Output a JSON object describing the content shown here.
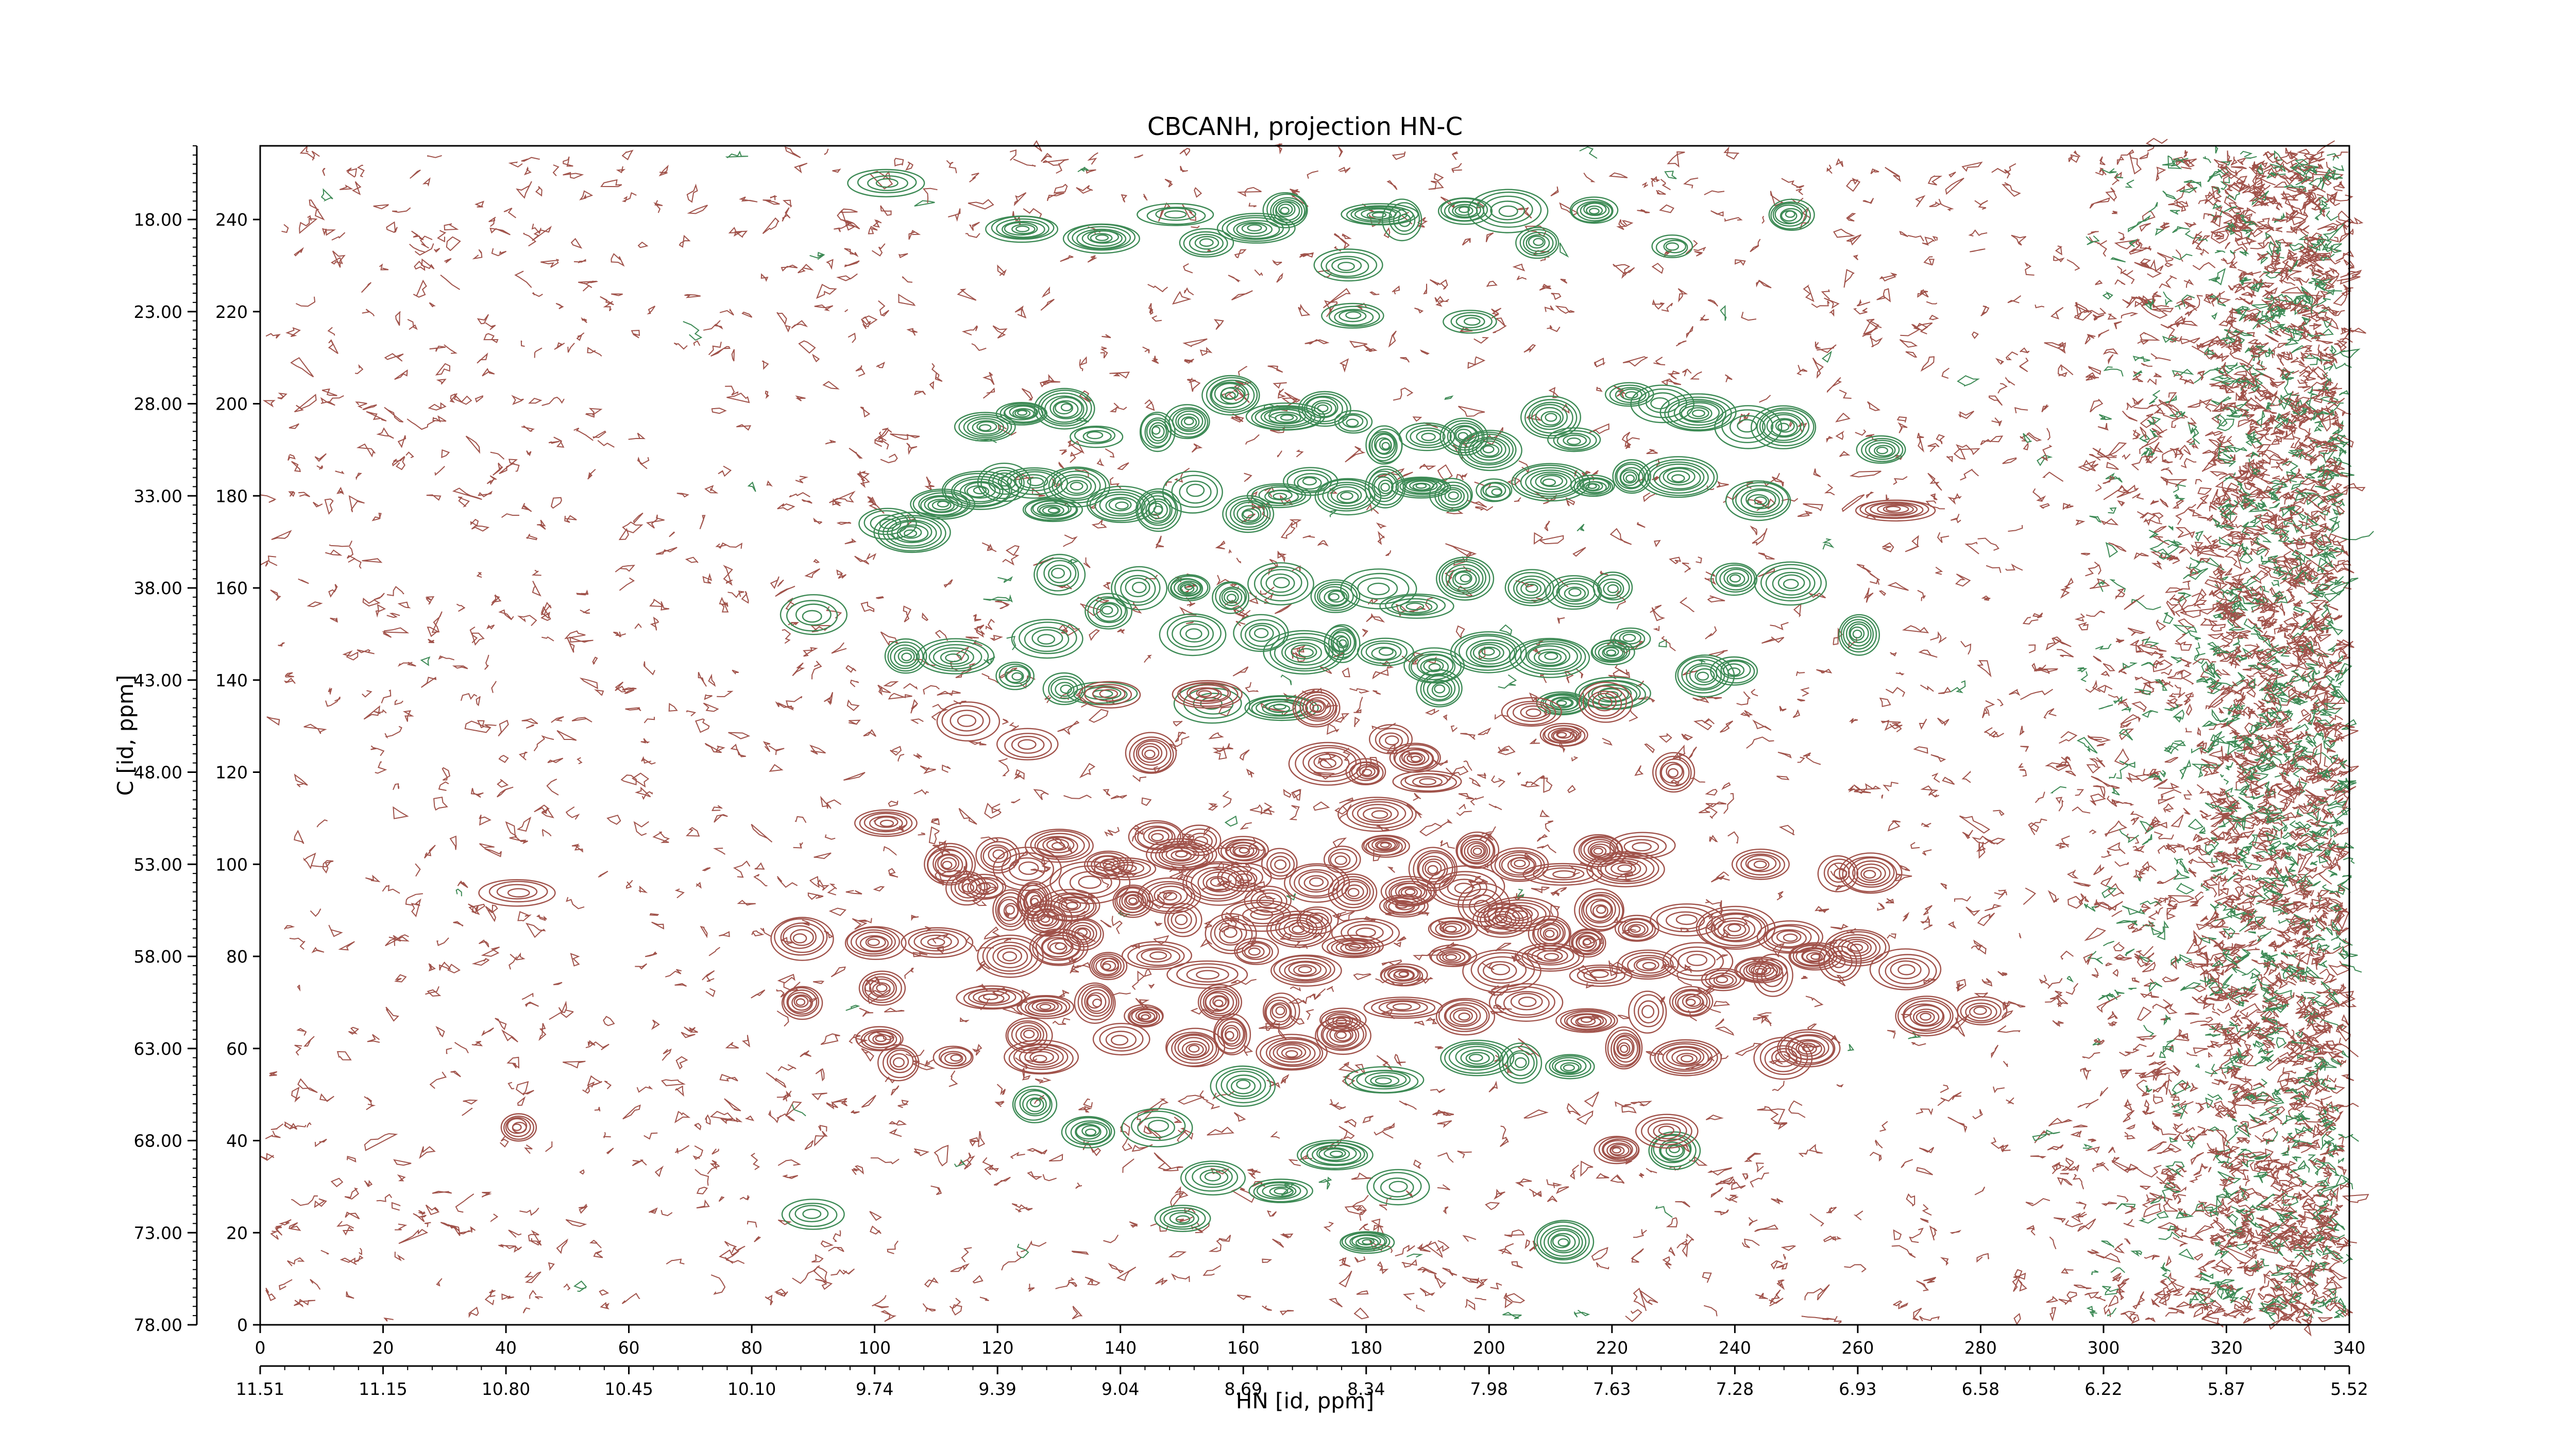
{
  "chart_data": {
    "type": "contour",
    "title": "CBCANH, projection HN-C",
    "xlabel": "HN [id, ppm]",
    "ylabel": "C [id, ppm]",
    "x_index_ticks": [
      "0",
      "20",
      "40",
      "60",
      "80",
      "100",
      "120",
      "140",
      "160",
      "180",
      "200",
      "220",
      "240",
      "260",
      "280",
      "300",
      "320",
      "340"
    ],
    "x_ppm_ticks": [
      "11.51",
      "11.15",
      "10.80",
      "10.45",
      "10.10",
      "9.74",
      "9.39",
      "9.04",
      "8.69",
      "8.34",
      "7.98",
      "7.63",
      "7.28",
      "6.93",
      "6.58",
      "6.22",
      "5.87",
      "5.52"
    ],
    "y_index_ticks": [
      "0",
      "20",
      "40",
      "60",
      "80",
      "100",
      "120",
      "140",
      "160",
      "180",
      "200",
      "220",
      "240"
    ],
    "y_ppm_ticks": [
      "78.00",
      "73.00",
      "68.00",
      "63.00",
      "58.00",
      "53.00",
      "48.00",
      "43.00",
      "38.00",
      "33.00",
      "28.00",
      "23.00",
      "18.00"
    ],
    "x_index_range": [
      0,
      340
    ],
    "y_index_range": [
      0,
      256
    ],
    "grid": false,
    "colors": {
      "positive": "#a0524a",
      "negative": "#3d8a55"
    },
    "series": [
      {
        "sign": "negative",
        "peaks": [
          [
            102,
            248
          ],
          [
            124,
            238
          ],
          [
            137,
            236
          ],
          [
            149,
            241
          ],
          [
            154,
            235
          ],
          [
            162,
            238
          ],
          [
            167,
            242
          ],
          [
            177,
            230
          ],
          [
            182,
            241
          ],
          [
            186,
            240
          ],
          [
            196,
            242
          ],
          [
            203,
            242
          ],
          [
            208,
            235
          ],
          [
            217,
            242
          ],
          [
            230,
            234
          ],
          [
            249,
            241
          ],
          [
            178,
            219
          ],
          [
            197,
            218
          ],
          [
            118,
            195
          ],
          [
            124,
            198
          ],
          [
            131,
            199
          ],
          [
            136,
            193
          ],
          [
            146,
            194
          ],
          [
            151,
            196
          ],
          [
            158,
            202
          ],
          [
            167,
            197
          ],
          [
            173,
            199
          ],
          [
            178,
            196
          ],
          [
            183,
            191
          ],
          [
            190,
            193
          ],
          [
            196,
            193
          ],
          [
            200,
            190
          ],
          [
            210,
            197
          ],
          [
            214,
            192
          ],
          [
            223,
            202
          ],
          [
            228,
            200
          ],
          [
            234,
            198
          ],
          [
            242,
            195
          ],
          [
            248,
            195
          ],
          [
            264,
            190
          ],
          [
            111,
            178
          ],
          [
            117,
            181
          ],
          [
            121,
            183
          ],
          [
            126,
            183
          ],
          [
            129,
            177
          ],
          [
            133,
            182
          ],
          [
            140,
            178
          ],
          [
            146,
            177
          ],
          [
            152,
            181
          ],
          [
            161,
            176
          ],
          [
            166,
            180
          ],
          [
            171,
            183
          ],
          [
            177,
            180
          ],
          [
            183,
            182
          ],
          [
            189,
            182
          ],
          [
            194,
            180
          ],
          [
            201,
            181
          ],
          [
            210,
            183
          ],
          [
            217,
            182
          ],
          [
            223,
            184
          ],
          [
            231,
            184
          ],
          [
            244,
            179
          ],
          [
            102,
            174
          ],
          [
            106,
            172
          ],
          [
            130,
            163
          ],
          [
            143,
            160
          ],
          [
            151,
            160
          ],
          [
            158,
            158
          ],
          [
            166,
            161
          ],
          [
            175,
            158
          ],
          [
            182,
            160
          ],
          [
            188,
            156
          ],
          [
            196,
            162
          ],
          [
            207,
            160
          ],
          [
            214,
            159
          ],
          [
            220,
            160
          ],
          [
            240,
            162
          ],
          [
            249,
            161
          ],
          [
            90,
            154
          ],
          [
            105,
            145
          ],
          [
            113,
            145
          ],
          [
            128,
            149
          ],
          [
            138,
            155
          ],
          [
            152,
            150
          ],
          [
            163,
            150
          ],
          [
            170,
            146
          ],
          [
            176,
            148
          ],
          [
            183,
            146
          ],
          [
            191,
            143
          ],
          [
            200,
            146
          ],
          [
            210,
            145
          ],
          [
            220,
            146
          ],
          [
            223,
            149
          ],
          [
            235,
            141
          ],
          [
            240,
            142
          ],
          [
            260,
            150
          ],
          [
            123,
            141
          ],
          [
            131,
            138
          ],
          [
            137,
            137
          ],
          [
            155,
            135
          ],
          [
            166,
            134
          ],
          [
            192,
            138
          ],
          [
            212,
            135
          ],
          [
            220,
            137
          ],
          [
            198,
            58
          ],
          [
            205,
            57
          ],
          [
            213,
            56
          ],
          [
            230,
            38
          ],
          [
            160,
            52
          ],
          [
            183,
            53
          ],
          [
            126,
            48
          ],
          [
            135,
            42
          ],
          [
            146,
            43
          ],
          [
            155,
            32
          ],
          [
            166,
            29
          ],
          [
            175,
            37
          ],
          [
            185,
            30
          ],
          [
            90,
            24
          ],
          [
            150,
            23
          ],
          [
            180,
            18
          ],
          [
            212,
            18
          ]
        ]
      },
      {
        "sign": "positive",
        "peaks": [
          [
            138,
            137
          ],
          [
            154,
            137
          ],
          [
            172,
            134
          ],
          [
            184,
            127
          ],
          [
            188,
            123
          ],
          [
            207,
            133
          ],
          [
            212,
            128
          ],
          [
            219,
            135
          ],
          [
            115,
            131
          ],
          [
            125,
            126
          ],
          [
            145,
            124
          ],
          [
            174,
            122
          ],
          [
            180,
            120
          ],
          [
            190,
            118
          ],
          [
            230,
            120
          ],
          [
            182,
            111
          ],
          [
            102,
            109
          ],
          [
            112,
            100
          ],
          [
            118,
            95
          ],
          [
            125,
            99
          ],
          [
            130,
            104
          ],
          [
            138,
            100
          ],
          [
            146,
            106
          ],
          [
            153,
            105
          ],
          [
            160,
            103
          ],
          [
            166,
            100
          ],
          [
            176,
            101
          ],
          [
            183,
            104
          ],
          [
            191,
            99
          ],
          [
            198,
            103
          ],
          [
            205,
            100
          ],
          [
            212,
            98
          ],
          [
            218,
            103
          ],
          [
            222,
            99
          ],
          [
            244,
            100
          ],
          [
            262,
            98
          ],
          [
            115,
            95
          ],
          [
            122,
            90
          ],
          [
            128,
            88
          ],
          [
            134,
            85
          ],
          [
            142,
            92
          ],
          [
            150,
            88
          ],
          [
            158,
            85
          ],
          [
            164,
            92
          ],
          [
            172,
            88
          ],
          [
            180,
            85
          ],
          [
            186,
            91
          ],
          [
            194,
            86
          ],
          [
            202,
            88
          ],
          [
            210,
            85
          ],
          [
            218,
            90
          ],
          [
            224,
            86
          ],
          [
            232,
            88
          ],
          [
            240,
            86
          ],
          [
            249,
            84
          ],
          [
            260,
            82
          ],
          [
            88,
            84
          ],
          [
            100,
            83
          ],
          [
            110,
            83
          ],
          [
            122,
            80
          ],
          [
            130,
            82
          ],
          [
            138,
            78
          ],
          [
            146,
            80
          ],
          [
            154,
            76
          ],
          [
            162,
            81
          ],
          [
            170,
            77
          ],
          [
            178,
            82
          ],
          [
            186,
            76
          ],
          [
            194,
            80
          ],
          [
            202,
            77
          ],
          [
            210,
            80
          ],
          [
            218,
            76
          ],
          [
            226,
            78
          ],
          [
            234,
            79
          ],
          [
            244,
            77
          ],
          [
            253,
            80
          ],
          [
            88,
            70
          ],
          [
            101,
            73
          ],
          [
            119,
            71
          ],
          [
            128,
            69
          ],
          [
            136,
            70
          ],
          [
            144,
            67
          ],
          [
            156,
            70
          ],
          [
            166,
            68
          ],
          [
            176,
            66
          ],
          [
            186,
            69
          ],
          [
            196,
            67
          ],
          [
            206,
            70
          ],
          [
            216,
            66
          ],
          [
            226,
            68
          ],
          [
            233,
            70
          ],
          [
            246,
            76
          ],
          [
            257,
            79
          ],
          [
            268,
            77
          ],
          [
            271,
            67
          ],
          [
            280,
            68
          ],
          [
            101,
            62
          ],
          [
            125,
            63
          ],
          [
            140,
            62
          ],
          [
            152,
            60
          ],
          [
            158,
            63
          ],
          [
            168,
            59
          ],
          [
            176,
            63
          ],
          [
            222,
            60
          ],
          [
            232,
            58
          ],
          [
            248,
            58
          ],
          [
            252,
            60
          ],
          [
            127,
            58
          ],
          [
            104,
            57
          ],
          [
            113,
            58
          ],
          [
            42,
            94
          ],
          [
            42,
            43
          ],
          [
            238,
            75
          ],
          [
            216,
            83
          ],
          [
            199,
            91
          ],
          [
            205,
            89
          ],
          [
            187,
            94
          ],
          [
            196,
            95
          ],
          [
            225,
            104
          ],
          [
            257,
            98
          ],
          [
            178,
            94
          ],
          [
            172,
            96
          ],
          [
            169,
            86
          ],
          [
            163,
            89
          ],
          [
            148,
            93
          ],
          [
            156,
            96
          ],
          [
            135,
            96
          ],
          [
            141,
            99
          ],
          [
            132,
            91
          ],
          [
            126,
            92
          ],
          [
            120,
            102
          ],
          [
            150,
            102
          ],
          [
            160,
            97
          ],
          [
            229,
            42
          ],
          [
            221,
            38
          ],
          [
            266,
            177
          ]
        ]
      }
    ]
  }
}
